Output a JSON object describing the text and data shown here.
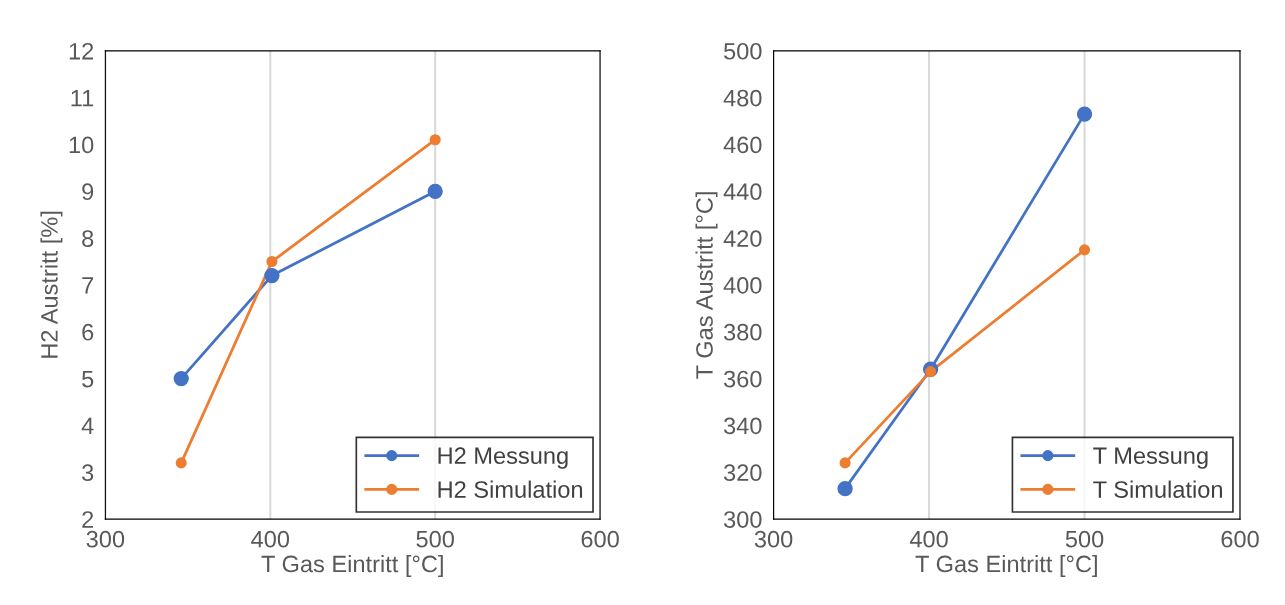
{
  "chart_data": [
    {
      "type": "line",
      "xlabel": "T Gas Eintritt [°C]",
      "ylabel": "H2 Austritt [%]",
      "xlim": [
        300,
        600
      ],
      "xticks": [
        300,
        400,
        500,
        600
      ],
      "ylim": [
        2,
        12
      ],
      "yticks": [
        2,
        3,
        4,
        5,
        6,
        7,
        8,
        9,
        10,
        11,
        12
      ],
      "grid": "x",
      "legend": "bottom right",
      "marker": "circle",
      "series": [
        {
          "name": "H2 Messung",
          "color": "#4472c4",
          "x": [
            346,
            401,
            500
          ],
          "values": [
            5.0,
            7.2,
            9.0
          ]
        },
        {
          "name": "H2 Simulation",
          "color": "#ed7d31",
          "x": [
            346,
            401,
            500
          ],
          "values": [
            3.2,
            7.5,
            10.1
          ]
        }
      ]
    },
    {
      "type": "line",
      "xlabel": "T Gas Eintritt [°C]",
      "ylabel": "T Gas Austritt [°C]",
      "xlim": [
        300,
        600
      ],
      "xticks": [
        300,
        400,
        500,
        600
      ],
      "ylim": [
        300,
        500
      ],
      "yticks": [
        300,
        320,
        340,
        360,
        380,
        400,
        420,
        440,
        460,
        480,
        500
      ],
      "grid": "x",
      "legend": "bottom right",
      "marker": "circle",
      "series": [
        {
          "name": "T Messung",
          "color": "#4472c4",
          "x": [
            346,
            401,
            500
          ],
          "values": [
            313,
            364,
            473
          ]
        },
        {
          "name": "T Simulation",
          "color": "#ed7d31",
          "x": [
            346,
            401,
            500
          ],
          "values": [
            324,
            363,
            415
          ]
        }
      ]
    }
  ]
}
